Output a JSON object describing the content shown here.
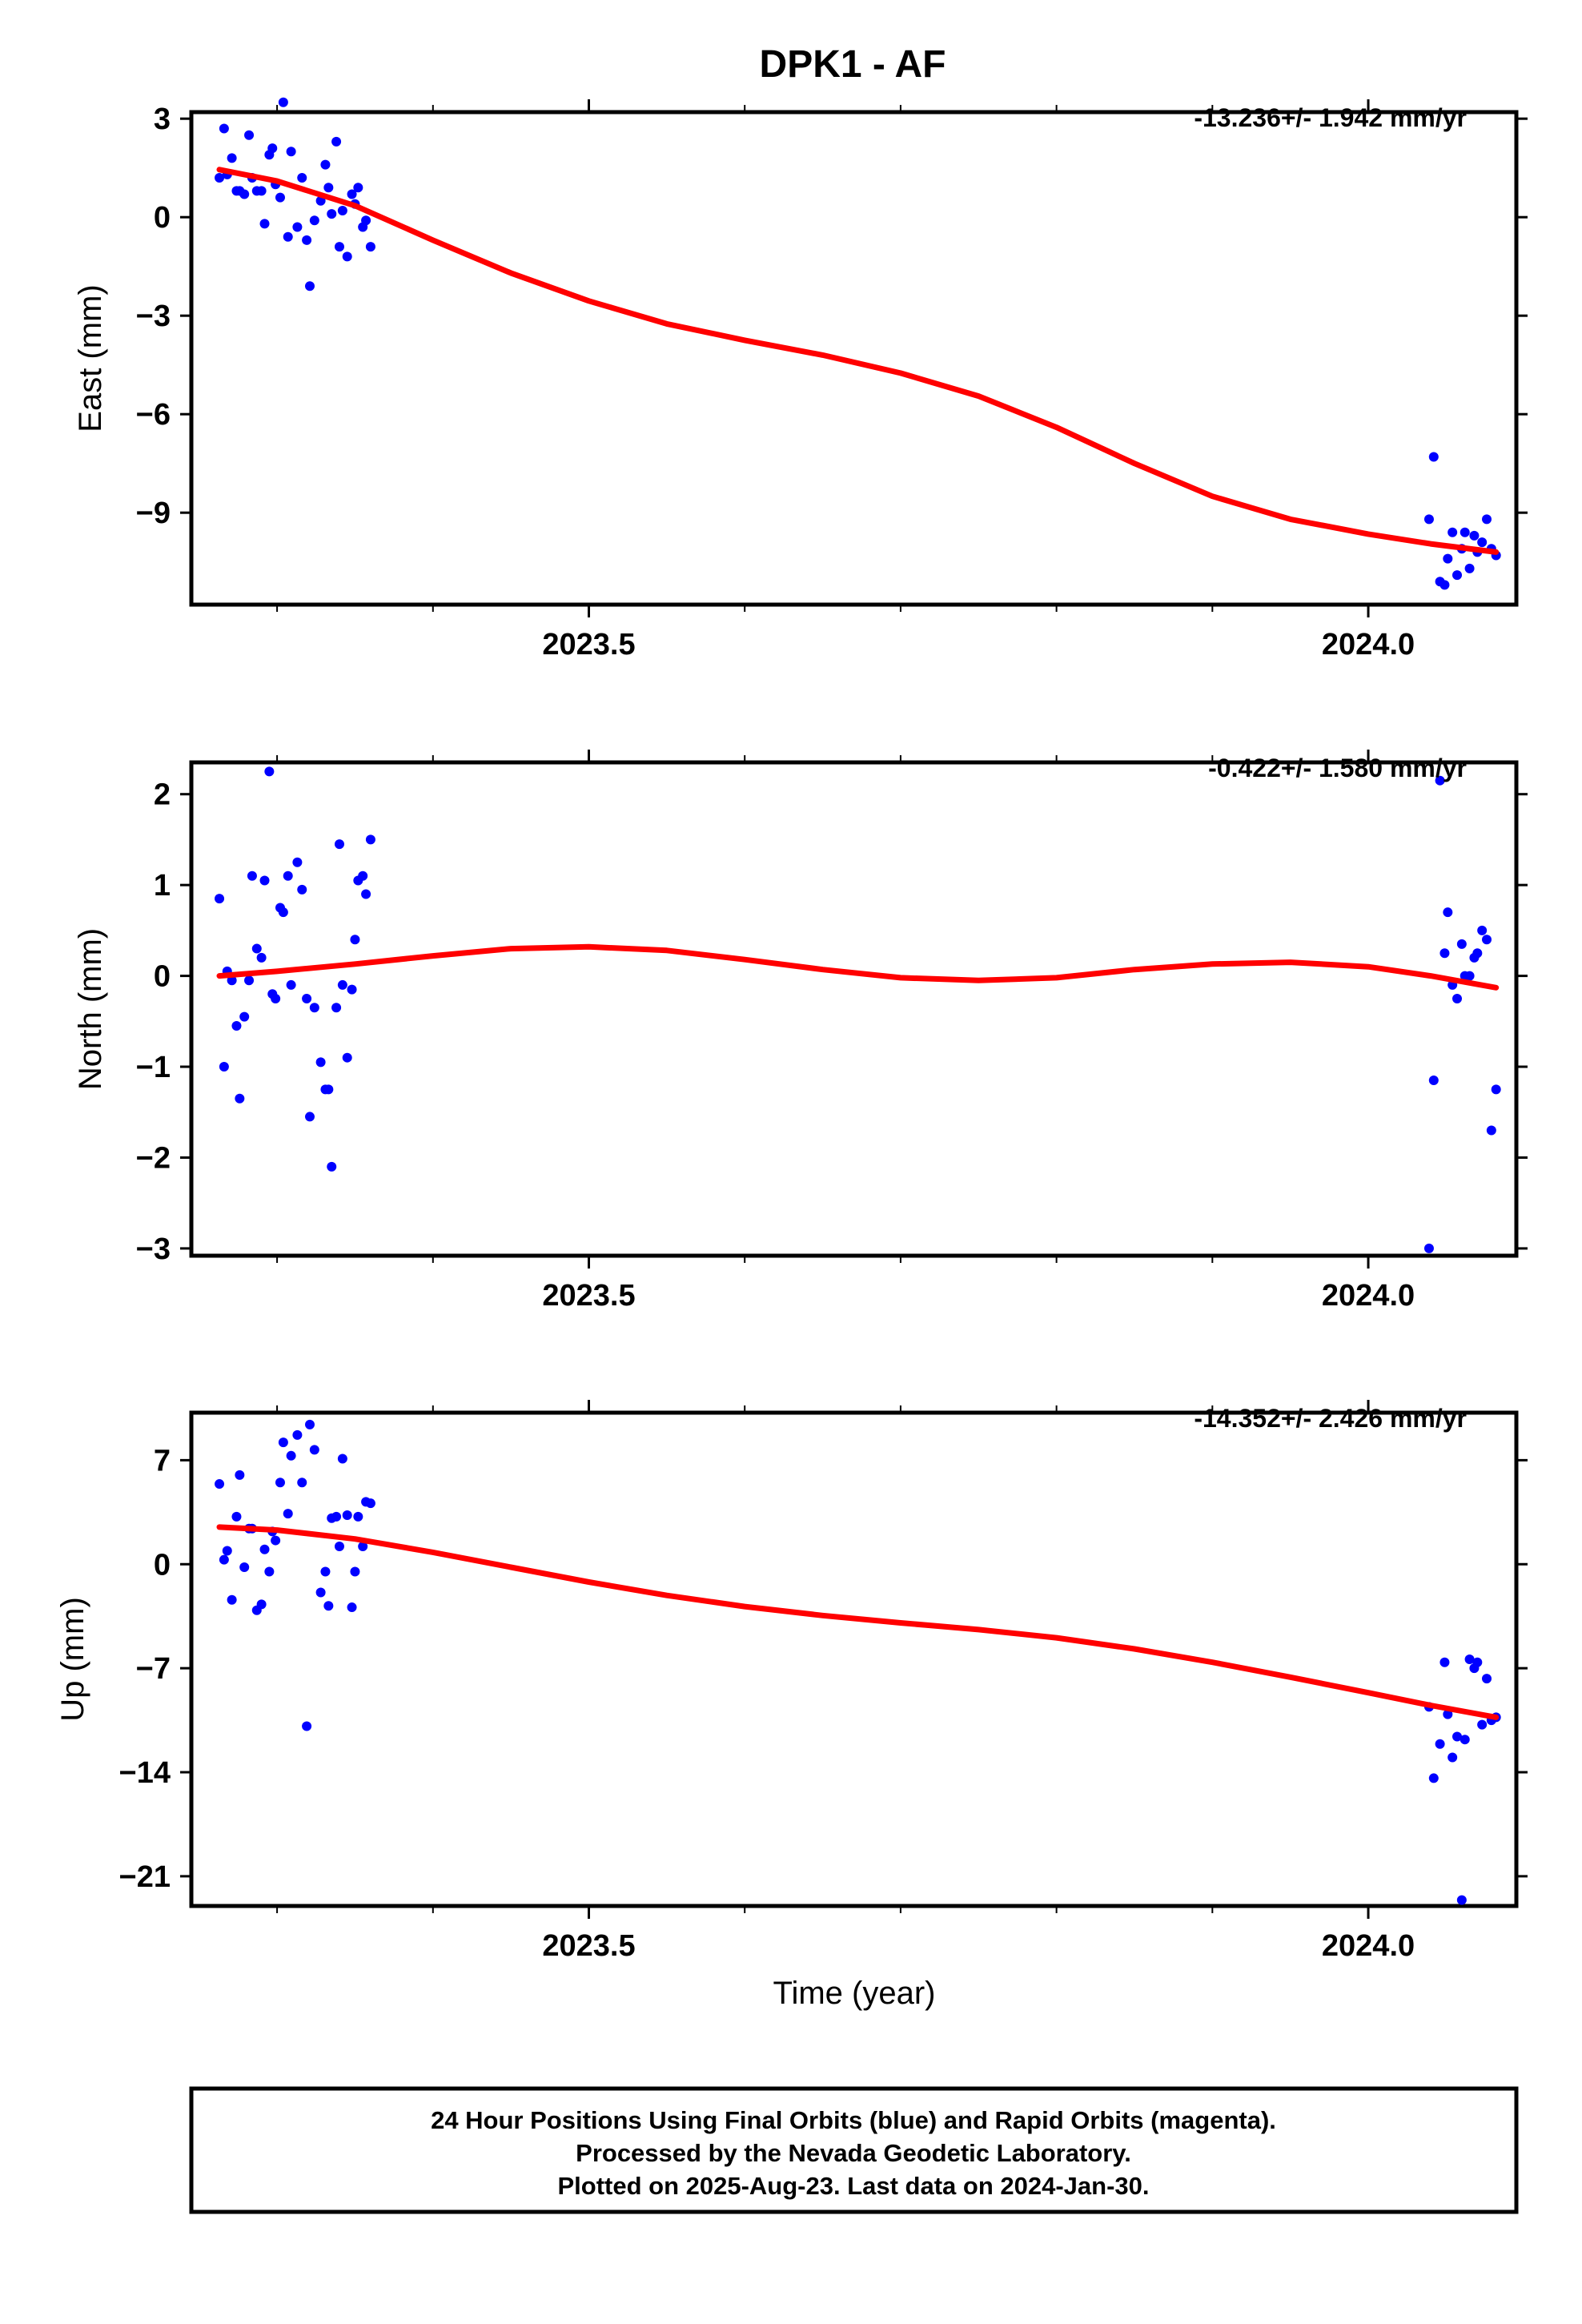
{
  "title": "DPK1 - AF",
  "footer": {
    "line1": "24 Hour Positions Using Final Orbits (blue) and Rapid Orbits (magenta).",
    "line2": "Processed by the Nevada Geodetic Laboratory.",
    "line3": "Plotted on 2025-Aug-23. Last data on 2024-Jan-30."
  },
  "colors": {
    "points": "#0000ff",
    "fit": "#ff0000",
    "frame": "#000000"
  },
  "chart_data": [
    {
      "type": "scatter",
      "ylabel": "East (mm)",
      "xlabel": "",
      "rate": "-13.236+/- 1.942 mm/yr",
      "xlim": [
        2023.245,
        2024.095
      ],
      "ylim": [
        -11.8,
        3.2
      ],
      "xticks": [
        2023.5,
        2024.0
      ],
      "xtick_labels": [
        "2023.5",
        "2024.0"
      ],
      "yticks": [
        3,
        0,
        -3,
        -6,
        -9
      ],
      "ytick_labels": [
        "3",
        "0",
        "−3",
        "−6",
        "−9"
      ],
      "points": [
        [
          2023.263,
          1.2
        ],
        [
          2023.266,
          2.7
        ],
        [
          2023.268,
          1.3
        ],
        [
          2023.271,
          1.8
        ],
        [
          2023.274,
          0.8
        ],
        [
          2023.276,
          0.8
        ],
        [
          2023.279,
          0.7
        ],
        [
          2023.282,
          2.5
        ],
        [
          2023.284,
          1.2
        ],
        [
          2023.287,
          0.8
        ],
        [
          2023.29,
          0.8
        ],
        [
          2023.292,
          -0.2
        ],
        [
          2023.295,
          1.9
        ],
        [
          2023.297,
          2.1
        ],
        [
          2023.299,
          1.0
        ],
        [
          2023.302,
          0.6
        ],
        [
          2023.304,
          3.5
        ],
        [
          2023.307,
          -0.6
        ],
        [
          2023.309,
          2.0
        ],
        [
          2023.313,
          -0.3
        ],
        [
          2023.316,
          1.2
        ],
        [
          2023.319,
          -0.7
        ],
        [
          2023.321,
          -2.1
        ],
        [
          2023.324,
          -0.1
        ],
        [
          2023.328,
          0.5
        ],
        [
          2023.331,
          1.6
        ],
        [
          2023.333,
          0.9
        ],
        [
          2023.335,
          0.1
        ],
        [
          2023.338,
          2.3
        ],
        [
          2023.34,
          -0.9
        ],
        [
          2023.342,
          0.2
        ],
        [
          2023.345,
          -1.2
        ],
        [
          2023.348,
          0.7
        ],
        [
          2023.35,
          0.4
        ],
        [
          2023.352,
          0.9
        ],
        [
          2023.355,
          -0.3
        ],
        [
          2023.357,
          -0.1
        ],
        [
          2023.36,
          -0.9
        ],
        [
          2024.039,
          -9.2
        ],
        [
          2024.042,
          -7.3
        ],
        [
          2024.046,
          -11.1
        ],
        [
          2024.049,
          -11.2
        ],
        [
          2024.051,
          -10.4
        ],
        [
          2024.054,
          -9.6
        ],
        [
          2024.057,
          -10.9
        ],
        [
          2024.06,
          -10.1
        ],
        [
          2024.062,
          -9.6
        ],
        [
          2024.065,
          -10.7
        ],
        [
          2024.068,
          -9.7
        ],
        [
          2024.07,
          -10.2
        ],
        [
          2024.073,
          -9.9
        ],
        [
          2024.076,
          -9.2
        ],
        [
          2024.079,
          -10.1
        ],
        [
          2024.082,
          -10.3
        ]
      ],
      "fit": [
        [
          2023.263,
          1.45
        ],
        [
          2023.3,
          1.1
        ],
        [
          2023.35,
          0.35
        ],
        [
          2023.4,
          -0.7
        ],
        [
          2023.45,
          -1.7
        ],
        [
          2023.5,
          -2.55
        ],
        [
          2023.55,
          -3.25
        ],
        [
          2023.6,
          -3.75
        ],
        [
          2023.65,
          -4.2
        ],
        [
          2023.7,
          -4.75
        ],
        [
          2023.75,
          -5.45
        ],
        [
          2023.8,
          -6.4
        ],
        [
          2023.85,
          -7.5
        ],
        [
          2023.9,
          -8.5
        ],
        [
          2023.95,
          -9.2
        ],
        [
          2024.0,
          -9.65
        ],
        [
          2024.04,
          -9.95
        ],
        [
          2024.082,
          -10.2
        ]
      ]
    },
    {
      "type": "scatter",
      "ylabel": "North (mm)",
      "xlabel": "",
      "rate": "-0.422+/- 1.580 mm/yr",
      "xlim": [
        2023.245,
        2024.095
      ],
      "ylim": [
        -3.08,
        2.35
      ],
      "xticks": [
        2023.5,
        2024.0
      ],
      "xtick_labels": [
        "2023.5",
        "2024.0"
      ],
      "yticks": [
        2,
        1,
        0,
        -1,
        -2,
        -3
      ],
      "ytick_labels": [
        "2",
        "1",
        "0",
        "−1",
        "−2",
        "−3"
      ],
      "points": [
        [
          2023.263,
          0.85
        ],
        [
          2023.266,
          -1.0
        ],
        [
          2023.268,
          0.05
        ],
        [
          2023.271,
          -0.05
        ],
        [
          2023.274,
          -0.55
        ],
        [
          2023.276,
          -1.35
        ],
        [
          2023.279,
          -0.45
        ],
        [
          2023.282,
          -0.05
        ],
        [
          2023.284,
          1.1
        ],
        [
          2023.287,
          0.3
        ],
        [
          2023.29,
          0.2
        ],
        [
          2023.292,
          1.05
        ],
        [
          2023.295,
          2.25
        ],
        [
          2023.297,
          -0.2
        ],
        [
          2023.299,
          -0.25
        ],
        [
          2023.302,
          0.75
        ],
        [
          2023.304,
          0.7
        ],
        [
          2023.307,
          1.1
        ],
        [
          2023.309,
          -0.1
        ],
        [
          2023.313,
          1.25
        ],
        [
          2023.316,
          0.95
        ],
        [
          2023.319,
          -0.25
        ],
        [
          2023.321,
          -1.55
        ],
        [
          2023.324,
          -0.35
        ],
        [
          2023.328,
          -0.95
        ],
        [
          2023.331,
          -1.25
        ],
        [
          2023.333,
          -1.25
        ],
        [
          2023.335,
          -2.1
        ],
        [
          2023.338,
          -0.35
        ],
        [
          2023.34,
          1.45
        ],
        [
          2023.342,
          -0.1
        ],
        [
          2023.345,
          -0.9
        ],
        [
          2023.348,
          -0.15
        ],
        [
          2023.35,
          0.4
        ],
        [
          2023.352,
          1.05
        ],
        [
          2023.355,
          1.1
        ],
        [
          2023.357,
          0.9
        ],
        [
          2023.36,
          1.5
        ],
        [
          2024.039,
          -3.0
        ],
        [
          2024.042,
          -1.15
        ],
        [
          2024.046,
          2.15
        ],
        [
          2024.049,
          0.25
        ],
        [
          2024.051,
          0.7
        ],
        [
          2024.054,
          -0.1
        ],
        [
          2024.057,
          -0.25
        ],
        [
          2024.06,
          0.35
        ],
        [
          2024.062,
          0.0
        ],
        [
          2024.065,
          0.0
        ],
        [
          2024.068,
          0.2
        ],
        [
          2024.07,
          0.25
        ],
        [
          2024.073,
          0.5
        ],
        [
          2024.076,
          0.4
        ],
        [
          2024.079,
          -1.7
        ],
        [
          2024.082,
          -1.25
        ]
      ],
      "fit": [
        [
          2023.263,
          0.0
        ],
        [
          2023.3,
          0.05
        ],
        [
          2023.35,
          0.13
        ],
        [
          2023.4,
          0.22
        ],
        [
          2023.45,
          0.3
        ],
        [
          2023.5,
          0.32
        ],
        [
          2023.55,
          0.28
        ],
        [
          2023.6,
          0.18
        ],
        [
          2023.65,
          0.07
        ],
        [
          2023.7,
          -0.02
        ],
        [
          2023.75,
          -0.05
        ],
        [
          2023.8,
          -0.02
        ],
        [
          2023.85,
          0.07
        ],
        [
          2023.9,
          0.13
        ],
        [
          2023.95,
          0.15
        ],
        [
          2024.0,
          0.1
        ],
        [
          2024.04,
          0.0
        ],
        [
          2024.082,
          -0.13
        ]
      ]
    },
    {
      "type": "scatter",
      "ylabel": "Up (mm)",
      "xlabel": "Time (year)",
      "rate": "-14.352+/- 2.426 mm/yr",
      "xlim": [
        2023.245,
        2024.095
      ],
      "ylim": [
        -23.0,
        10.2
      ],
      "xticks": [
        2023.5,
        2024.0
      ],
      "xtick_labels": [
        "2023.5",
        "2024.0"
      ],
      "yticks": [
        7,
        0,
        -7,
        -14,
        -21
      ],
      "ytick_labels": [
        "7",
        "0",
        "−7",
        "−14",
        "−21"
      ],
      "points": [
        [
          2023.263,
          5.4
        ],
        [
          2023.266,
          0.3
        ],
        [
          2023.268,
          0.9
        ],
        [
          2023.271,
          -2.4
        ],
        [
          2023.274,
          3.2
        ],
        [
          2023.276,
          6.0
        ],
        [
          2023.279,
          -0.2
        ],
        [
          2023.282,
          2.4
        ],
        [
          2023.284,
          2.4
        ],
        [
          2023.287,
          -3.1
        ],
        [
          2023.29,
          -2.7
        ],
        [
          2023.292,
          1.0
        ],
        [
          2023.295,
          -0.5
        ],
        [
          2023.297,
          2.2
        ],
        [
          2023.299,
          1.6
        ],
        [
          2023.302,
          5.5
        ],
        [
          2023.304,
          8.2
        ],
        [
          2023.307,
          3.4
        ],
        [
          2023.309,
          7.3
        ],
        [
          2023.313,
          8.7
        ],
        [
          2023.316,
          5.5
        ],
        [
          2023.319,
          -10.9
        ],
        [
          2023.321,
          9.4
        ],
        [
          2023.324,
          7.7
        ],
        [
          2023.328,
          -1.9
        ],
        [
          2023.331,
          -0.5
        ],
        [
          2023.333,
          -2.8
        ],
        [
          2023.335,
          3.1
        ],
        [
          2023.338,
          3.2
        ],
        [
          2023.34,
          1.2
        ],
        [
          2023.342,
          7.1
        ],
        [
          2023.345,
          3.3
        ],
        [
          2023.348,
          -2.9
        ],
        [
          2023.35,
          -0.5
        ],
        [
          2023.352,
          3.2
        ],
        [
          2023.355,
          1.2
        ],
        [
          2023.357,
          4.2
        ],
        [
          2023.36,
          4.1
        ],
        [
          2024.039,
          -9.6
        ],
        [
          2024.042,
          -14.4
        ],
        [
          2024.046,
          -12.1
        ],
        [
          2024.049,
          -6.6
        ],
        [
          2024.051,
          -10.1
        ],
        [
          2024.054,
          -13.0
        ],
        [
          2024.057,
          -11.6
        ],
        [
          2024.06,
          -22.6
        ],
        [
          2024.062,
          -11.8
        ],
        [
          2024.065,
          -6.4
        ],
        [
          2024.068,
          -7.0
        ],
        [
          2024.07,
          -6.6
        ],
        [
          2024.073,
          -10.8
        ],
        [
          2024.076,
          -7.7
        ],
        [
          2024.079,
          -10.5
        ],
        [
          2024.082,
          -10.3
        ]
      ],
      "fit": [
        [
          2023.263,
          2.5
        ],
        [
          2023.3,
          2.3
        ],
        [
          2023.35,
          1.7
        ],
        [
          2023.4,
          0.8
        ],
        [
          2023.45,
          -0.2
        ],
        [
          2023.5,
          -1.2
        ],
        [
          2023.55,
          -2.1
        ],
        [
          2023.6,
          -2.85
        ],
        [
          2023.65,
          -3.45
        ],
        [
          2023.7,
          -3.95
        ],
        [
          2023.75,
          -4.4
        ],
        [
          2023.8,
          -4.95
        ],
        [
          2023.85,
          -5.7
        ],
        [
          2023.9,
          -6.6
        ],
        [
          2023.95,
          -7.6
        ],
        [
          2024.0,
          -8.65
        ],
        [
          2024.04,
          -9.5
        ],
        [
          2024.082,
          -10.3
        ]
      ]
    }
  ]
}
